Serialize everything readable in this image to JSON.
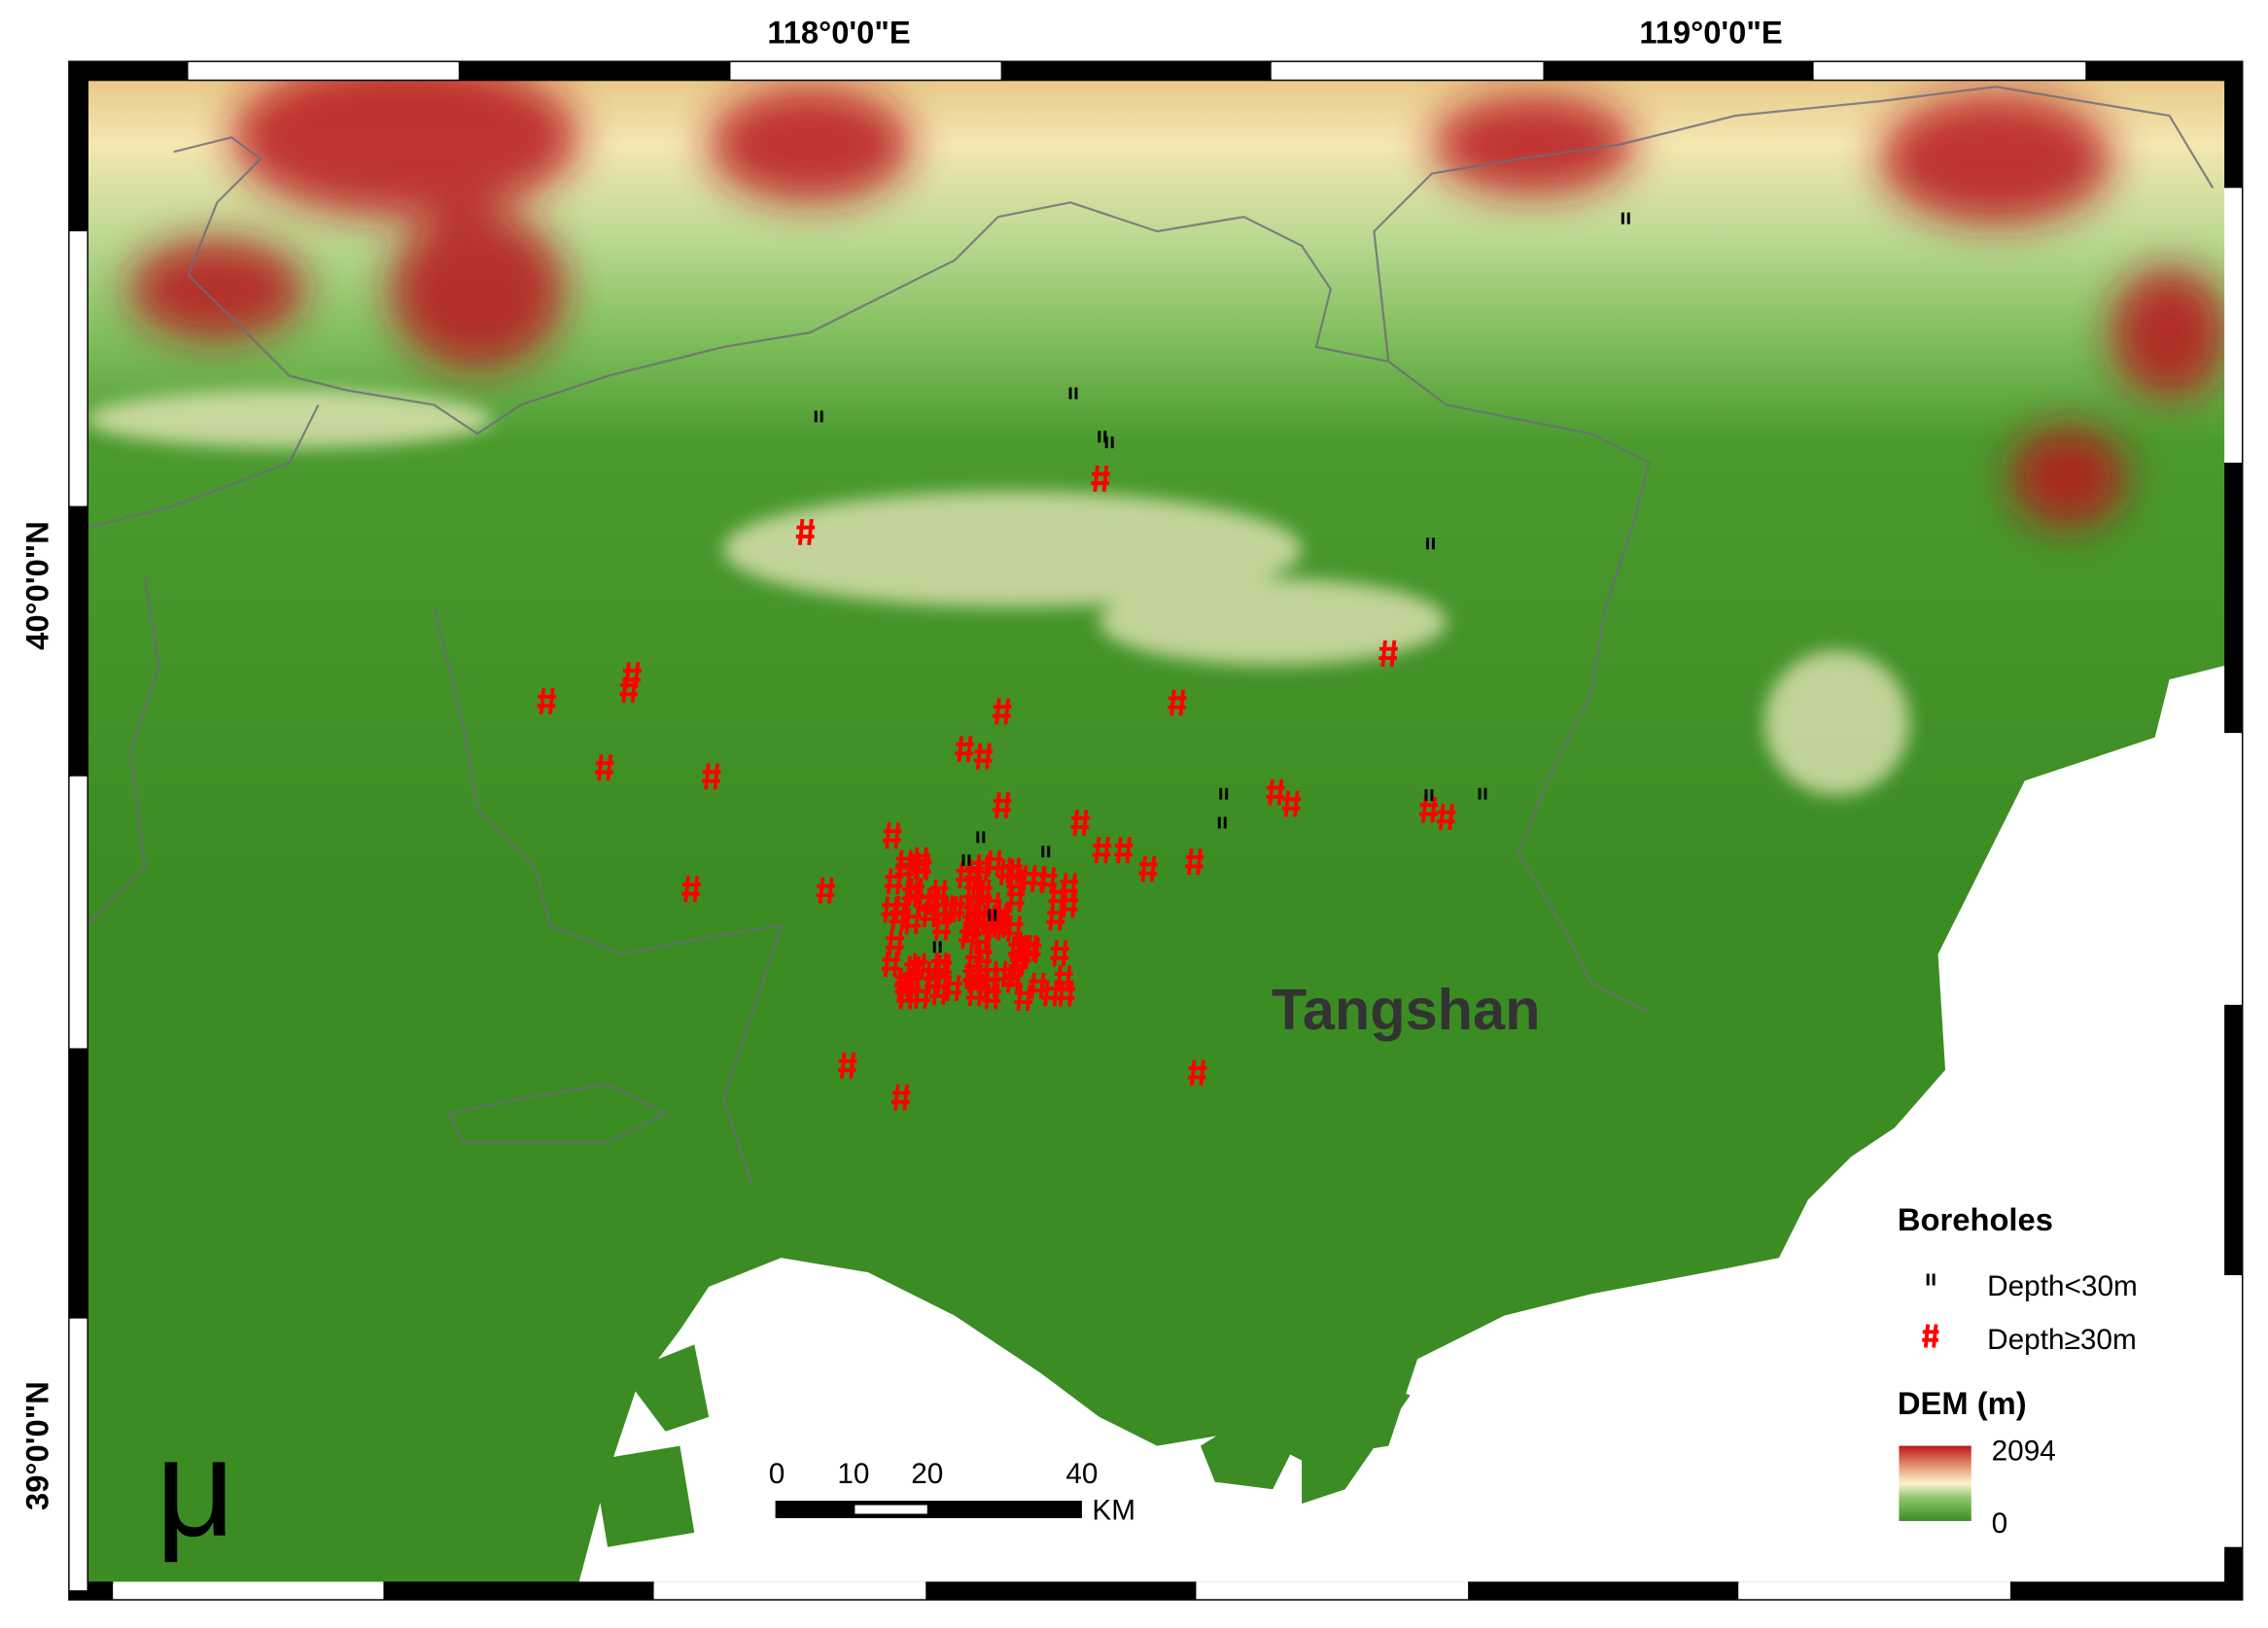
{
  "map": {
    "graticule": {
      "longitudes": [
        "118°0'0\"E",
        "119°0'0\"E"
      ],
      "latitudes": [
        "40°0'0\"N",
        "39°0'0\"N"
      ]
    },
    "place_label": "Tangshan",
    "north_arrow": "μ",
    "scale_bar": {
      "labels": [
        "0",
        "10",
        "20",
        "40"
      ],
      "unit": "KM"
    },
    "legend": {
      "title": "Boreholes",
      "items": [
        "Depth<30m",
        "Depth≥30m"
      ],
      "dem_title": "DEM (m)",
      "dem_max": "2094",
      "dem_min": "0"
    }
  }
}
